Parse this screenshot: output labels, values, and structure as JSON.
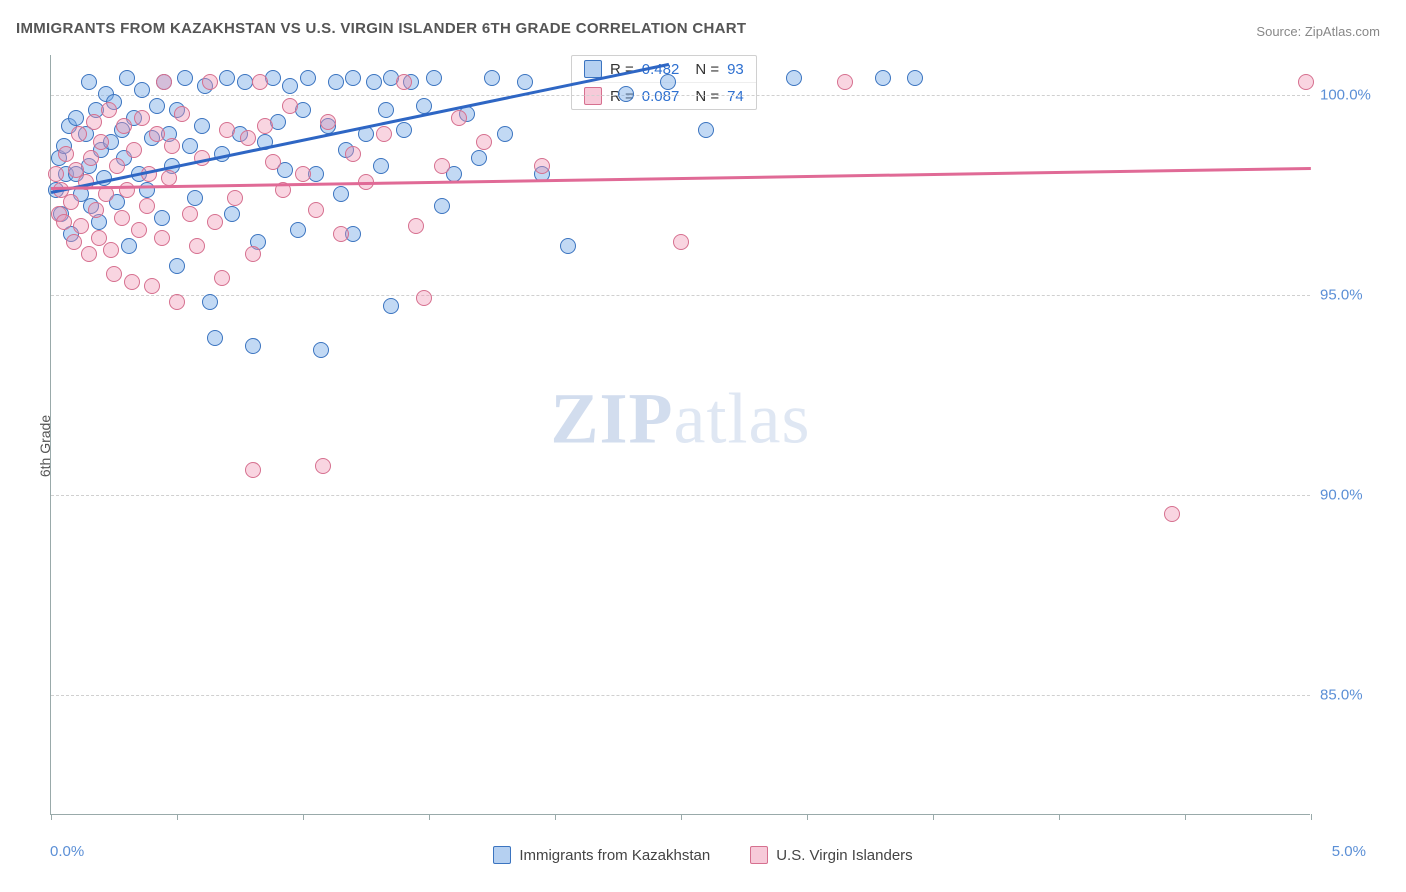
{
  "title": "IMMIGRANTS FROM KAZAKHSTAN VS U.S. VIRGIN ISLANDER 6TH GRADE CORRELATION CHART",
  "source": {
    "label": "Source:",
    "value": "ZipAtlas.com"
  },
  "ylabel": "6th Grade",
  "watermark": {
    "part1": "ZIP",
    "part2": "atlas"
  },
  "chart": {
    "type": "scatter",
    "xlim": [
      0.0,
      5.0
    ],
    "ylim": [
      82.0,
      101.0
    ],
    "xtick_positions": [
      0.0,
      0.5,
      1.0,
      1.5,
      2.0,
      2.5,
      3.0,
      3.5,
      4.0,
      4.5,
      5.0
    ],
    "xtick_labels": {
      "min": "0.0%",
      "max": "5.0%"
    },
    "ytick_positions": [
      85.0,
      90.0,
      95.0,
      100.0
    ],
    "ytick_labels": [
      "85.0%",
      "90.0%",
      "95.0%",
      "100.0%"
    ],
    "grid_color": "#d0d0d0",
    "background_color": "#ffffff",
    "series": [
      {
        "id": "s1",
        "name": "Immigrants from Kazakhstan",
        "fill_color": "rgba(120,170,230,0.45)",
        "stroke_color": "#3b74c0",
        "line_color": "#2e66c4",
        "marker_radius_px": 8,
        "R": "0.482",
        "N": "93",
        "trend": {
          "x1": 0.0,
          "y1": 97.6,
          "x2": 2.45,
          "y2": 100.8
        },
        "points": [
          [
            0.02,
            97.6
          ],
          [
            0.03,
            98.4
          ],
          [
            0.04,
            97.0
          ],
          [
            0.05,
            98.7
          ],
          [
            0.06,
            98.0
          ],
          [
            0.07,
            99.2
          ],
          [
            0.08,
            96.5
          ],
          [
            0.1,
            98.0
          ],
          [
            0.1,
            99.4
          ],
          [
            0.12,
            97.5
          ],
          [
            0.14,
            99.0
          ],
          [
            0.15,
            98.2
          ],
          [
            0.15,
            100.3
          ],
          [
            0.16,
            97.2
          ],
          [
            0.18,
            99.6
          ],
          [
            0.19,
            96.8
          ],
          [
            0.2,
            98.6
          ],
          [
            0.21,
            97.9
          ],
          [
            0.22,
            100.0
          ],
          [
            0.24,
            98.8
          ],
          [
            0.25,
            99.8
          ],
          [
            0.26,
            97.3
          ],
          [
            0.28,
            99.1
          ],
          [
            0.29,
            98.4
          ],
          [
            0.3,
            100.4
          ],
          [
            0.31,
            96.2
          ],
          [
            0.33,
            99.4
          ],
          [
            0.35,
            98.0
          ],
          [
            0.36,
            100.1
          ],
          [
            0.38,
            97.6
          ],
          [
            0.4,
            98.9
          ],
          [
            0.42,
            99.7
          ],
          [
            0.44,
            96.9
          ],
          [
            0.45,
            100.3
          ],
          [
            0.47,
            99.0
          ],
          [
            0.48,
            98.2
          ],
          [
            0.5,
            99.6
          ],
          [
            0.5,
            95.7
          ],
          [
            0.53,
            100.4
          ],
          [
            0.55,
            98.7
          ],
          [
            0.57,
            97.4
          ],
          [
            0.6,
            99.2
          ],
          [
            0.61,
            100.2
          ],
          [
            0.63,
            94.8
          ],
          [
            0.65,
            93.9
          ],
          [
            0.68,
            98.5
          ],
          [
            0.7,
            100.4
          ],
          [
            0.72,
            97.0
          ],
          [
            0.75,
            99.0
          ],
          [
            0.77,
            100.3
          ],
          [
            0.8,
            93.7
          ],
          [
            0.82,
            96.3
          ],
          [
            0.85,
            98.8
          ],
          [
            0.88,
            100.4
          ],
          [
            0.9,
            99.3
          ],
          [
            0.93,
            98.1
          ],
          [
            0.95,
            100.2
          ],
          [
            0.98,
            96.6
          ],
          [
            1.0,
            99.6
          ],
          [
            1.02,
            100.4
          ],
          [
            1.05,
            98.0
          ],
          [
            1.07,
            93.6
          ],
          [
            1.1,
            99.2
          ],
          [
            1.13,
            100.3
          ],
          [
            1.15,
            97.5
          ],
          [
            1.17,
            98.6
          ],
          [
            1.2,
            100.4
          ],
          [
            1.2,
            96.5
          ],
          [
            1.25,
            99.0
          ],
          [
            1.28,
            100.3
          ],
          [
            1.31,
            98.2
          ],
          [
            1.33,
            99.6
          ],
          [
            1.35,
            100.4
          ],
          [
            1.35,
            94.7
          ],
          [
            1.4,
            99.1
          ],
          [
            1.43,
            100.3
          ],
          [
            1.48,
            99.7
          ],
          [
            1.52,
            100.4
          ],
          [
            1.55,
            97.2
          ],
          [
            1.6,
            98.0
          ],
          [
            1.65,
            99.5
          ],
          [
            1.7,
            98.4
          ],
          [
            1.75,
            100.4
          ],
          [
            1.8,
            99.0
          ],
          [
            1.88,
            100.3
          ],
          [
            1.95,
            98.0
          ],
          [
            2.05,
            96.2
          ],
          [
            2.28,
            100.0
          ],
          [
            2.45,
            100.3
          ],
          [
            2.6,
            99.1
          ],
          [
            2.95,
            100.4
          ],
          [
            3.3,
            100.4
          ],
          [
            3.43,
            100.4
          ]
        ]
      },
      {
        "id": "s2",
        "name": "U.S. Virgin Islanders",
        "fill_color": "rgba(240,150,180,0.40)",
        "stroke_color": "#d6708f",
        "line_color": "#e06a96",
        "marker_radius_px": 8,
        "R": "0.087",
        "N": "74",
        "trend": {
          "x1": 0.0,
          "y1": 97.7,
          "x2": 5.0,
          "y2": 98.2
        },
        "points": [
          [
            0.02,
            98.0
          ],
          [
            0.03,
            97.0
          ],
          [
            0.04,
            97.6
          ],
          [
            0.05,
            96.8
          ],
          [
            0.06,
            98.5
          ],
          [
            0.08,
            97.3
          ],
          [
            0.09,
            96.3
          ],
          [
            0.1,
            98.1
          ],
          [
            0.11,
            99.0
          ],
          [
            0.12,
            96.7
          ],
          [
            0.14,
            97.8
          ],
          [
            0.15,
            96.0
          ],
          [
            0.16,
            98.4
          ],
          [
            0.17,
            99.3
          ],
          [
            0.18,
            97.1
          ],
          [
            0.19,
            96.4
          ],
          [
            0.2,
            98.8
          ],
          [
            0.22,
            97.5
          ],
          [
            0.23,
            99.6
          ],
          [
            0.24,
            96.1
          ],
          [
            0.25,
            95.5
          ],
          [
            0.26,
            98.2
          ],
          [
            0.28,
            96.9
          ],
          [
            0.29,
            99.2
          ],
          [
            0.3,
            97.6
          ],
          [
            0.32,
            95.3
          ],
          [
            0.33,
            98.6
          ],
          [
            0.35,
            96.6
          ],
          [
            0.36,
            99.4
          ],
          [
            0.38,
            97.2
          ],
          [
            0.39,
            98.0
          ],
          [
            0.4,
            95.2
          ],
          [
            0.42,
            99.0
          ],
          [
            0.44,
            96.4
          ],
          [
            0.45,
            100.3
          ],
          [
            0.47,
            97.9
          ],
          [
            0.48,
            98.7
          ],
          [
            0.5,
            94.8
          ],
          [
            0.52,
            99.5
          ],
          [
            0.55,
            97.0
          ],
          [
            0.58,
            96.2
          ],
          [
            0.6,
            98.4
          ],
          [
            0.63,
            100.3
          ],
          [
            0.65,
            96.8
          ],
          [
            0.68,
            95.4
          ],
          [
            0.7,
            99.1
          ],
          [
            0.73,
            97.4
          ],
          [
            0.78,
            98.9
          ],
          [
            0.8,
            96.0
          ],
          [
            0.8,
            90.6
          ],
          [
            0.83,
            100.3
          ],
          [
            0.85,
            99.2
          ],
          [
            0.88,
            98.3
          ],
          [
            0.92,
            97.6
          ],
          [
            0.95,
            99.7
          ],
          [
            1.0,
            98.0
          ],
          [
            1.05,
            97.1
          ],
          [
            1.08,
            90.7
          ],
          [
            1.1,
            99.3
          ],
          [
            1.15,
            96.5
          ],
          [
            1.2,
            98.5
          ],
          [
            1.25,
            97.8
          ],
          [
            1.32,
            99.0
          ],
          [
            1.4,
            100.3
          ],
          [
            1.45,
            96.7
          ],
          [
            1.55,
            98.2
          ],
          [
            1.62,
            99.4
          ],
          [
            1.72,
            98.8
          ],
          [
            1.95,
            98.2
          ],
          [
            2.5,
            96.3
          ],
          [
            3.15,
            100.3
          ],
          [
            4.45,
            89.5
          ],
          [
            4.98,
            100.3
          ],
          [
            1.48,
            94.9
          ]
        ]
      }
    ]
  },
  "legend_box": {
    "rows": [
      {
        "sw": "s1",
        "r_label": "R =",
        "r_value": "0.482",
        "n_label": "N =",
        "n_value": "93"
      },
      {
        "sw": "s2",
        "r_label": "R =",
        "r_value": "0.087",
        "n_label": "N =",
        "n_value": "74"
      }
    ]
  },
  "bottom_legend": [
    {
      "sw": "s1",
      "label": "Immigrants from Kazakhstan"
    },
    {
      "sw": "s2",
      "label": "U.S. Virgin Islanders"
    }
  ]
}
